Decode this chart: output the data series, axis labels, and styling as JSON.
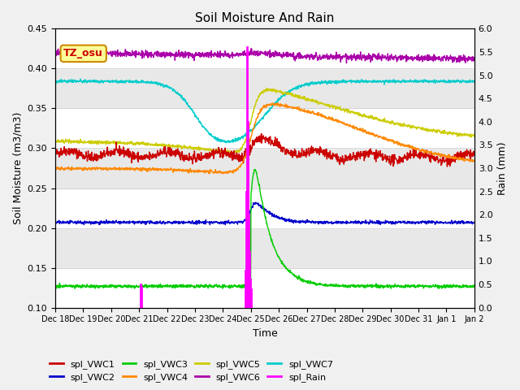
{
  "title": "Soil Moisture And Rain",
  "xlabel": "Time",
  "ylabel_left": "Soil Moisture (m3/m3)",
  "ylabel_right": "Rain (mm)",
  "ylim_left": [
    0.1,
    0.45
  ],
  "ylim_right": [
    0.0,
    6.0
  ],
  "station_label": "TZ_osu",
  "colors": {
    "VWC1": "#cc0000",
    "VWC2": "#0000cc",
    "VWC3": "#00cc00",
    "VWC4": "#ff8800",
    "VWC5": "#cccc00",
    "VWC6": "#aa00aa",
    "VWC7": "#00cccc",
    "Rain": "#ff00ff"
  },
  "bg_color": "#e8e8e8",
  "tick_labels": [
    "Dec 18",
    "Dec 19",
    "Dec 20",
    "Dec 21",
    "Dec 22",
    "Dec 23",
    "Dec 24",
    "Dec 25",
    "Dec 26",
    "Dec 27",
    "Dec 28",
    "Dec 29",
    "Dec 30",
    "Dec 31",
    "Jan 1",
    "Jan 2"
  ],
  "yticks_left": [
    0.1,
    0.15,
    0.2,
    0.25,
    0.3,
    0.35,
    0.4,
    0.45
  ],
  "yticks_right": [
    0.0,
    0.5,
    1.0,
    1.5,
    2.0,
    2.5,
    3.0,
    3.5,
    4.0,
    4.5,
    5.0,
    5.5,
    6.0
  ]
}
